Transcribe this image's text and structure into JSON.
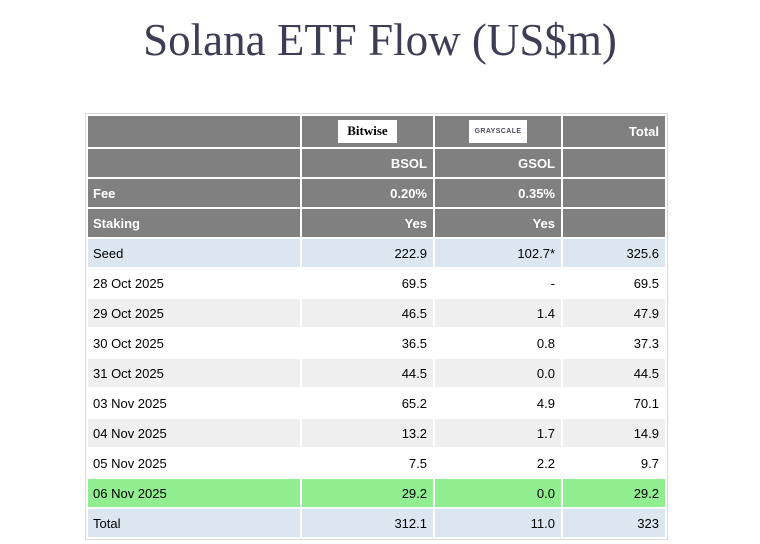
{
  "page": {
    "title": "Solana ETF Flow (US$m)"
  },
  "colors": {
    "title_color": "#3d3d55",
    "header_bg": "#808080",
    "row_blue": "#dce6f1",
    "row_gray": "#efefef",
    "row_green": "#90ee90",
    "header_text": "#ffffff"
  },
  "table": {
    "brand_row": {
      "bitwise_logo": "Bitwise",
      "grayscale_logo": "GRAYSCALE",
      "total_label": "Total"
    },
    "ticker_row": {
      "bsol": "BSOL",
      "gsol": "GSOL"
    },
    "fee_row": {
      "label": "Fee",
      "bsol": "0.20%",
      "gsol": "0.35%"
    },
    "staking_row": {
      "label": "Staking",
      "bsol": "Yes",
      "gsol": "Yes"
    },
    "rows": [
      {
        "label": "Seed",
        "bsol": "222.9",
        "gsol": "102.7*",
        "total": "325.6",
        "highlight": "blue"
      },
      {
        "label": "28 Oct 2025",
        "bsol": "69.5",
        "gsol": "-",
        "total": "69.5",
        "highlight": "none"
      },
      {
        "label": "29 Oct 2025",
        "bsol": "46.5",
        "gsol": "1.4",
        "total": "47.9",
        "highlight": "stripe"
      },
      {
        "label": "30 Oct 2025",
        "bsol": "36.5",
        "gsol": "0.8",
        "total": "37.3",
        "highlight": "none"
      },
      {
        "label": "31 Oct 2025",
        "bsol": "44.5",
        "gsol": "0.0",
        "total": "44.5",
        "highlight": "stripe"
      },
      {
        "label": "03 Nov 2025",
        "bsol": "65.2",
        "gsol": "4.9",
        "total": "70.1",
        "highlight": "none"
      },
      {
        "label": "04 Nov 2025",
        "bsol": "13.2",
        "gsol": "1.7",
        "total": "14.9",
        "highlight": "stripe"
      },
      {
        "label": "05 Nov 2025",
        "bsol": "7.5",
        "gsol": "2.2",
        "total": "9.7",
        "highlight": "none"
      },
      {
        "label": "06 Nov 2025",
        "bsol": "29.2",
        "gsol": "0.0",
        "total": "29.2",
        "highlight": "green"
      },
      {
        "label": "Total",
        "bsol": "312.1",
        "gsol": "11.0",
        "total": "323",
        "highlight": "blue"
      }
    ]
  }
}
